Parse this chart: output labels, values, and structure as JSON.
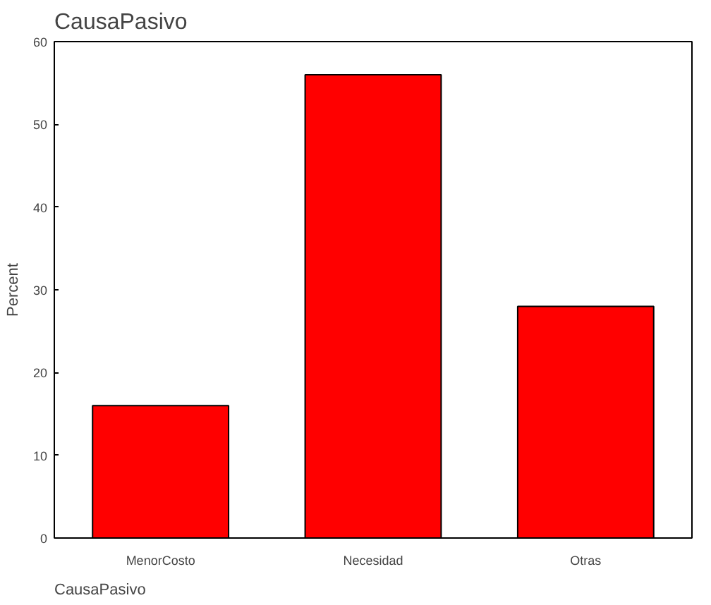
{
  "chart_data": {
    "type": "bar",
    "title": "CausaPasivo",
    "xlabel": "CausaPasivo",
    "ylabel": "Percent",
    "categories": [
      "MenorCosto",
      "Necesidad",
      "Otras"
    ],
    "values": [
      16,
      56,
      28
    ],
    "color": "#ff0000",
    "ylim": [
      0,
      60
    ],
    "yticks": [
      0,
      10,
      20,
      30,
      40,
      50,
      60
    ],
    "grid": false
  }
}
